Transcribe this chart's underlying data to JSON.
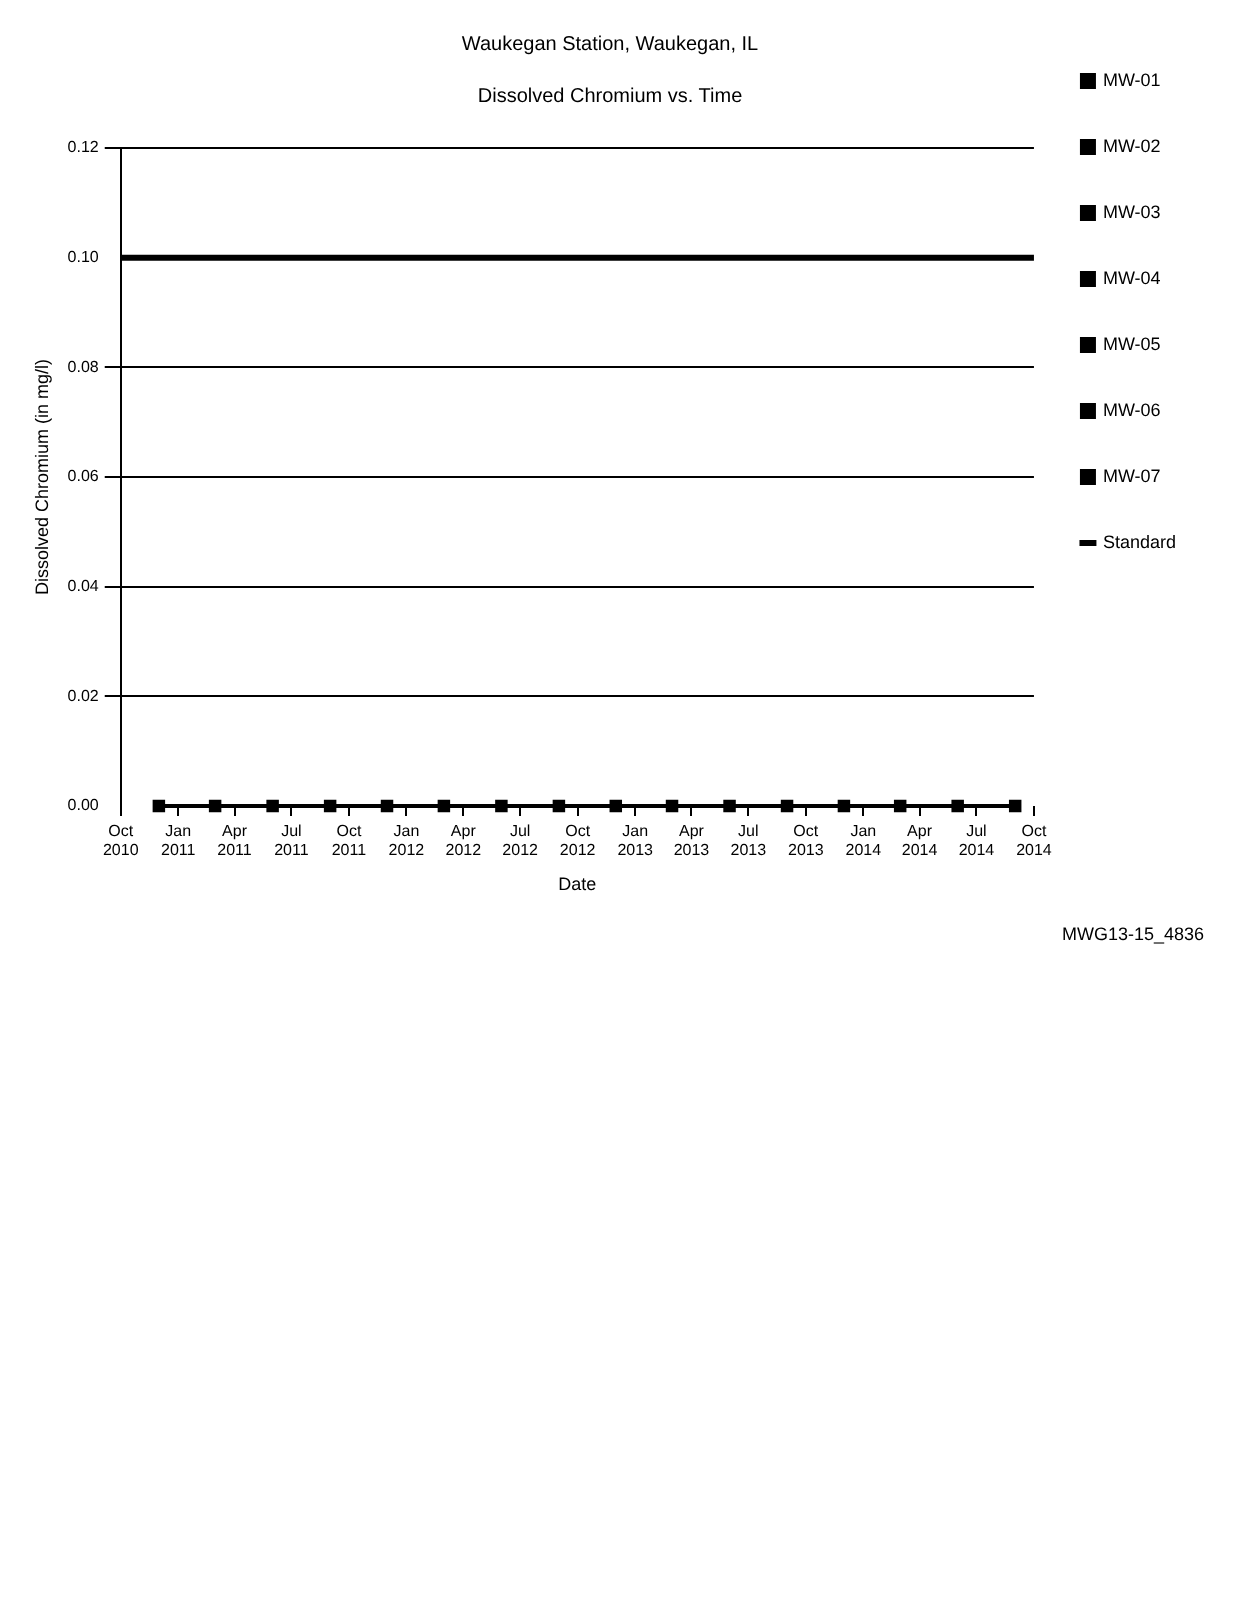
{
  "chart_data": {
    "type": "line",
    "title": "Waukegan Station, Waukegan, IL",
    "subtitle": "Dissolved Chromium vs. Time",
    "xlabel": "Date",
    "ylabel": "Dissolved Chromium (in mg/l)",
    "annotations": [
      "MWG13-15_4836"
    ],
    "xlim": [
      "2010-10",
      "2014-10"
    ],
    "xticks": [
      {
        "value": "2010-10",
        "label": "Oct 2010"
      },
      {
        "value": "2011-01",
        "label": "Jan 2011"
      },
      {
        "value": "2011-04",
        "label": "Apr 2011"
      },
      {
        "value": "2011-07",
        "label": "Jul 2011"
      },
      {
        "value": "2011-10",
        "label": "Oct 2011"
      },
      {
        "value": "2012-01",
        "label": "Jan 2012"
      },
      {
        "value": "2012-04",
        "label": "Apr 2012"
      },
      {
        "value": "2012-07",
        "label": "Jul 2012"
      },
      {
        "value": "2012-10",
        "label": "Oct 2012"
      },
      {
        "value": "2013-01",
        "label": "Jan 2013"
      },
      {
        "value": "2013-04",
        "label": "Apr 2013"
      },
      {
        "value": "2013-07",
        "label": "Jul 2013"
      },
      {
        "value": "2013-10",
        "label": "Oct 2013"
      },
      {
        "value": "2014-01",
        "label": "Jan 2014"
      },
      {
        "value": "2014-04",
        "label": "Apr 2014"
      },
      {
        "value": "2014-07",
        "label": "Jul 2014"
      },
      {
        "value": "2014-10",
        "label": "Oct 2014"
      }
    ],
    "ylim": [
      0,
      0.12
    ],
    "yticks": [
      {
        "value": 0,
        "label": "0.00"
      },
      {
        "value": 0.02,
        "label": "0.02"
      },
      {
        "value": 0.04,
        "label": "0.04"
      },
      {
        "value": 0.06,
        "label": "0.06"
      },
      {
        "value": 0.08,
        "label": "0.08"
      },
      {
        "value": 0.1,
        "label": "0.10"
      },
      {
        "value": 0.12,
        "label": "0.12"
      }
    ],
    "grid": "y",
    "legend": "right",
    "marker": "square",
    "line_style": "solid",
    "x": [
      "2010-12",
      "2011-03",
      "2011-06",
      "2011-09",
      "2011-12",
      "2012-03",
      "2012-06",
      "2012-09",
      "2012-12",
      "2013-03",
      "2013-06",
      "2013-09",
      "2013-12",
      "2014-03",
      "2014-06",
      "2014-09"
    ],
    "series": [
      {
        "name": "MW-01",
        "color": "#000000",
        "values": [
          null,
          null,
          null,
          null,
          null,
          null,
          null,
          null,
          null,
          null,
          null,
          null,
          null,
          null,
          null,
          null
        ]
      },
      {
        "name": "MW-02",
        "color": "#000000",
        "values": [
          null,
          null,
          null,
          null,
          null,
          null,
          null,
          null,
          null,
          null,
          null,
          null,
          null,
          null,
          null,
          null
        ]
      },
      {
        "name": "MW-03",
        "color": "#000000",
        "values": [
          null,
          null,
          null,
          null,
          null,
          null,
          null,
          null,
          null,
          null,
          null,
          null,
          null,
          null,
          null,
          null
        ]
      },
      {
        "name": "MW-04",
        "color": "#000000",
        "values": [
          null,
          null,
          null,
          null,
          null,
          null,
          null,
          null,
          null,
          null,
          null,
          null,
          null,
          null,
          null,
          null
        ]
      },
      {
        "name": "MW-05",
        "color": "#000000",
        "values": [
          null,
          null,
          null,
          null,
          null,
          null,
          null,
          null,
          null,
          null,
          null,
          null,
          null,
          null,
          null,
          null
        ]
      },
      {
        "name": "MW-06",
        "color": "#000000",
        "values": [
          null,
          null,
          null,
          null,
          null,
          null,
          null,
          null,
          null,
          null,
          null,
          null,
          null,
          null,
          null,
          null
        ]
      },
      {
        "name": "MW-07",
        "color": "#000000",
        "values": [
          0,
          0,
          0,
          0,
          0,
          0,
          0,
          0,
          0,
          0,
          0,
          0,
          0,
          0,
          0,
          0
        ]
      }
    ],
    "ref_lines": [
      {
        "axis": "y",
        "value": 0.1,
        "label": "Standard",
        "color": "#000000"
      }
    ]
  }
}
